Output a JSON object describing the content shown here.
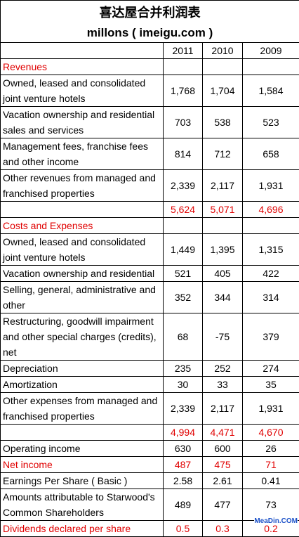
{
  "header": {
    "title": "喜达屋合并利润表",
    "subtitle": "millons ( imeigu.com )",
    "columns": [
      "2011",
      "2010",
      "2009"
    ]
  },
  "table": {
    "rows": [
      {
        "label": "Revenues",
        "color": "#e00000"
      },
      {
        "label": "Owned, leased and consolidated joint venture hotels",
        "values": [
          "1,768",
          "1,704",
          "1,584"
        ]
      },
      {
        "label": "Vacation ownership and residential sales and services",
        "values": [
          "703",
          "538",
          "523"
        ]
      },
      {
        "label": "Management fees, franchise fees and other income",
        "values": [
          "814",
          "712",
          "658"
        ]
      },
      {
        "label": "Other revenues from managed and franchised properties",
        "values": [
          "2,339",
          "2,117",
          "1,931"
        ]
      },
      {
        "values": [
          "5,624",
          "5,071",
          "4,696"
        ],
        "color": "#e00000"
      },
      {
        "label": "Costs and Expenses",
        "color": "#e00000"
      },
      {
        "label": "Owned, leased and consolidated joint venture hotels",
        "values": [
          "1,449",
          "1,395",
          "1,315"
        ]
      },
      {
        "label": "Vacation ownership and residential",
        "values": [
          "521",
          "405",
          "422"
        ]
      },
      {
        "label": "Selling, general, administrative and other",
        "values": [
          "352",
          "344",
          "314"
        ]
      },
      {
        "label": "Restructuring, goodwill impairment and other special charges (credits), net",
        "values": [
          "68",
          "-75",
          "379"
        ]
      },
      {
        "label": "Depreciation",
        "values": [
          "235",
          "252",
          "274"
        ]
      },
      {
        "label": "Amortization",
        "values": [
          "30",
          "33",
          "35"
        ]
      },
      {
        "label": "Other expenses from managed and franchised properties",
        "values": [
          "2,339",
          "2,117",
          "1,931"
        ]
      },
      {
        "values": [
          "4,994",
          "4,471",
          "4,670"
        ],
        "color": "#e00000"
      },
      {
        "label": "Operating income",
        "values": [
          "630",
          "600",
          "26"
        ]
      },
      {
        "label": "Net income",
        "values": [
          "487",
          "475",
          "71"
        ],
        "color": "#e00000"
      },
      {
        "label": "Earnings Per Share ( Basic )",
        "values": [
          "2.58",
          "2.61",
          "0.41"
        ]
      },
      {
        "label": "Amounts attributable to Starwood's Common Shareholders",
        "values": [
          "489",
          "477",
          "73"
        ]
      },
      {
        "label": "Dividends declared per share",
        "values": [
          "0.5",
          "0.3",
          "0.2"
        ],
        "color": "#e00000"
      }
    ]
  },
  "watermark": "MeaDin.COM"
}
